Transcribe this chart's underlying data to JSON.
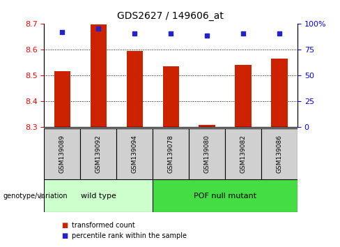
{
  "title": "GDS2627 / 149606_at",
  "samples": [
    "GSM139089",
    "GSM139092",
    "GSM139094",
    "GSM139078",
    "GSM139080",
    "GSM139082",
    "GSM139086"
  ],
  "transformed_counts": [
    8.515,
    8.695,
    8.595,
    8.535,
    8.31,
    8.54,
    8.565
  ],
  "percentile_ranks": [
    92,
    95,
    90,
    90,
    88,
    90,
    90
  ],
  "ylim_left": [
    8.3,
    8.7
  ],
  "ylim_right": [
    0,
    100
  ],
  "yticks_left": [
    8.3,
    8.4,
    8.5,
    8.6,
    8.7
  ],
  "yticks_right": [
    0,
    25,
    50,
    75,
    100
  ],
  "bar_color": "#CC2200",
  "dot_color": "#2222CC",
  "bar_bottom": 8.3,
  "groups": [
    {
      "label": "wild type",
      "indices": [
        0,
        1,
        2
      ],
      "color": "#ccffcc"
    },
    {
      "label": "POF null mutant",
      "indices": [
        3,
        4,
        5,
        6
      ],
      "color": "#44dd44"
    }
  ],
  "legend_items": [
    {
      "label": "transformed count",
      "color": "#CC2200"
    },
    {
      "label": "percentile rank within the sample",
      "color": "#2222CC"
    }
  ],
  "genotype_label": "genotype/variation",
  "grid_color": "#000000",
  "background_color": "#ffffff",
  "bar_width": 0.45,
  "title_fontsize": 10,
  "sample_label_fontsize": 6.5,
  "group_label_fontsize": 8
}
